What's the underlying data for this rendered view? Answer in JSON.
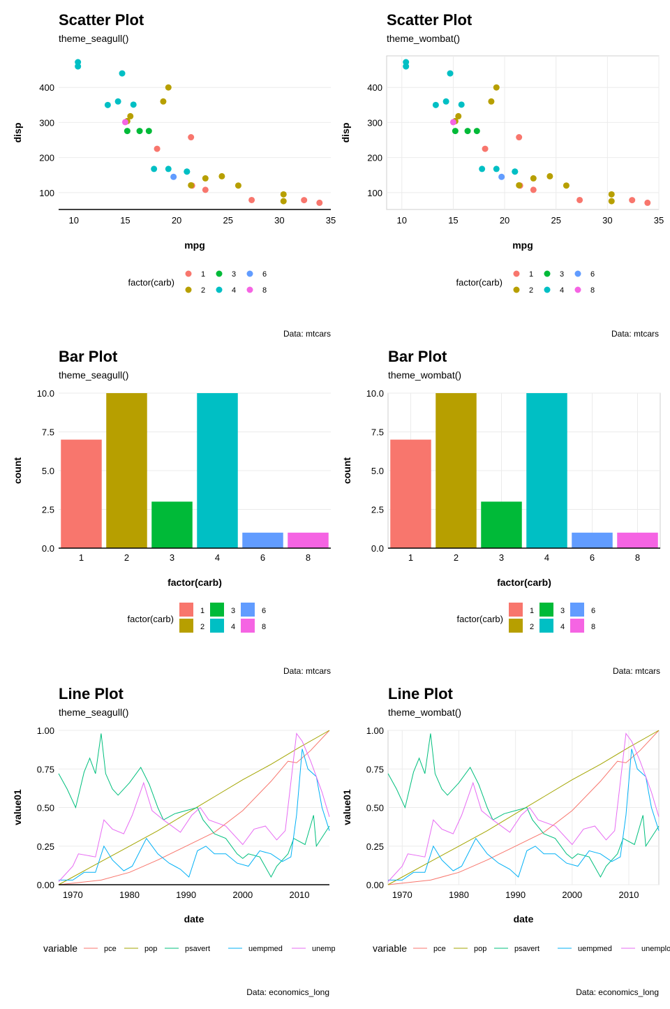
{
  "colors": {
    "series": {
      "1": "#F8766D",
      "2": "#B79F00",
      "3": "#00BA38",
      "4": "#00BFC4",
      "6": "#619CFF",
      "8": "#F564E3"
    },
    "lines": {
      "pce": "#F8766D",
      "pop": "#A3A500",
      "psavert": "#00BF7D",
      "uempmed": "#00B0F6",
      "unemploy": "#E76BF3"
    }
  },
  "panels": {
    "scatter_seagull": {
      "title": "Scatter Plot",
      "subtitle": "theme_seagull()",
      "caption": "Data: mtcars"
    },
    "scatter_wombat": {
      "title": "Scatter Plot",
      "subtitle": "theme_wombat()",
      "caption": "Data: mtcars"
    },
    "bar_seagull": {
      "title": "Bar Plot",
      "subtitle": "theme_seagull()",
      "caption": "Data: mtcars"
    },
    "bar_wombat": {
      "title": "Bar Plot",
      "subtitle": "theme_wombat()",
      "caption": "Data: mtcars"
    },
    "line_seagull": {
      "title": "Line Plot",
      "subtitle": "theme_seagull()",
      "caption": "Data: economics_long"
    },
    "line_wombat": {
      "title": "Line Plot",
      "subtitle": "theme_wombat()",
      "caption": "Data: economics_long"
    }
  },
  "chart_data": [
    {
      "id": "scatter",
      "type": "scatter",
      "xlabel": "mpg",
      "ylabel": "disp",
      "xlim": [
        9.2,
        35.0
      ],
      "ylim": [
        52,
        490
      ],
      "xticks": [
        "10",
        "15",
        "20",
        "25",
        "30",
        "35"
      ],
      "yticks": [
        "100",
        "200",
        "300",
        "400"
      ],
      "legend_title": "factor(carb)",
      "legend_labels": [
        "1",
        "2",
        "3",
        "4",
        "6",
        "8"
      ],
      "points": [
        [
          21,
          160,
          4
        ],
        [
          21,
          160,
          4
        ],
        [
          22.8,
          108,
          1
        ],
        [
          21.4,
          258,
          1
        ],
        [
          18.7,
          360,
          2
        ],
        [
          18.1,
          225,
          1
        ],
        [
          14.3,
          360,
          4
        ],
        [
          24.4,
          146.7,
          2
        ],
        [
          22.8,
          140.8,
          2
        ],
        [
          19.2,
          167.6,
          4
        ],
        [
          17.8,
          167.6,
          4
        ],
        [
          16.4,
          275.8,
          3
        ],
        [
          17.3,
          275.8,
          3
        ],
        [
          15.2,
          275.8,
          3
        ],
        [
          10.4,
          472,
          4
        ],
        [
          10.4,
          460,
          4
        ],
        [
          14.7,
          440,
          4
        ],
        [
          32.4,
          78.7,
          1
        ],
        [
          30.4,
          75.7,
          2
        ],
        [
          33.9,
          71.1,
          1
        ],
        [
          21.5,
          120.1,
          1
        ],
        [
          15.5,
          318,
          2
        ],
        [
          15.2,
          304,
          2
        ],
        [
          13.3,
          350,
          4
        ],
        [
          19.2,
          400,
          2
        ],
        [
          27.3,
          79,
          1
        ],
        [
          26,
          120.3,
          2
        ],
        [
          30.4,
          95.1,
          2
        ],
        [
          15.8,
          351,
          4
        ],
        [
          19.7,
          145,
          6
        ],
        [
          15,
          301,
          8
        ],
        [
          21.4,
          121,
          2
        ]
      ]
    },
    {
      "id": "bar",
      "type": "bar",
      "xlabel": "factor(carb)",
      "ylabel": "count",
      "ylim": [
        0,
        10
      ],
      "categories": [
        "1",
        "2",
        "3",
        "4",
        "6",
        "8"
      ],
      "values": [
        7,
        10,
        3,
        10,
        1,
        1
      ],
      "yticks": [
        "0.0",
        "2.5",
        "5.0",
        "7.5",
        "10.0"
      ],
      "legend_title": "factor(carb)",
      "legend_labels": [
        "1",
        "2",
        "3",
        "4",
        "6",
        "8"
      ]
    },
    {
      "id": "line",
      "type": "line",
      "xlabel": "date",
      "ylabel": "value01",
      "xlim": [
        1967.5,
        2015.3
      ],
      "ylim": [
        0,
        1
      ],
      "xticks": [
        "1970",
        "1980",
        "1990",
        "2000",
        "2010"
      ],
      "yticks": [
        "0.00",
        "0.25",
        "0.50",
        "0.75",
        "1.00"
      ],
      "legend_title": "variable",
      "series": [
        {
          "name": "pce",
          "points": [
            [
              1967.5,
              0
            ],
            [
              1975,
              0.03
            ],
            [
              1980,
              0.08
            ],
            [
              1985,
              0.16
            ],
            [
              1990,
              0.25
            ],
            [
              1995,
              0.34
            ],
            [
              2000,
              0.48
            ],
            [
              2005,
              0.67
            ],
            [
              2008,
              0.8
            ],
            [
              2009.5,
              0.79
            ],
            [
              2012,
              0.87
            ],
            [
              2015.3,
              1.0
            ]
          ]
        },
        {
          "name": "pop",
          "points": [
            [
              1967.5,
              0
            ],
            [
              1970,
              0.05
            ],
            [
              1975,
              0.15
            ],
            [
              1980,
              0.25
            ],
            [
              1985,
              0.35
            ],
            [
              1990,
              0.46
            ],
            [
              1995,
              0.57
            ],
            [
              2000,
              0.68
            ],
            [
              2005,
              0.78
            ],
            [
              2010,
              0.89
            ],
            [
              2015.3,
              1.0
            ]
          ]
        },
        {
          "name": "psavert",
          "points": [
            [
              1967.5,
              0.72
            ],
            [
              1969,
              0.62
            ],
            [
              1970.5,
              0.5
            ],
            [
              1972,
              0.73
            ],
            [
              1973,
              0.82
            ],
            [
              1974,
              0.72
            ],
            [
              1975,
              0.98
            ],
            [
              1975.8,
              0.72
            ],
            [
              1977,
              0.62
            ],
            [
              1978,
              0.58
            ],
            [
              1980,
              0.66
            ],
            [
              1982,
              0.76
            ],
            [
              1983.5,
              0.65
            ],
            [
              1985,
              0.5
            ],
            [
              1986,
              0.42
            ],
            [
              1988,
              0.46
            ],
            [
              1990,
              0.48
            ],
            [
              1992,
              0.5
            ],
            [
              1993,
              0.42
            ],
            [
              1995,
              0.33
            ],
            [
              1997,
              0.3
            ],
            [
              1999,
              0.2
            ],
            [
              2000,
              0.17
            ],
            [
              2001,
              0.2
            ],
            [
              2003,
              0.18
            ],
            [
              2005,
              0.05
            ],
            [
              2006,
              0.12
            ],
            [
              2008,
              0.2
            ],
            [
              2009,
              0.3
            ],
            [
              2011,
              0.26
            ],
            [
              2012.5,
              0.45
            ],
            [
              2013,
              0.25
            ],
            [
              2015.3,
              0.38
            ]
          ]
        },
        {
          "name": "uempmed",
          "points": [
            [
              1967.5,
              0.03
            ],
            [
              1970,
              0.03
            ],
            [
              1972,
              0.08
            ],
            [
              1974,
              0.08
            ],
            [
              1975.5,
              0.25
            ],
            [
              1977,
              0.16
            ],
            [
              1979,
              0.09
            ],
            [
              1980.5,
              0.12
            ],
            [
              1983,
              0.3
            ],
            [
              1985,
              0.2
            ],
            [
              1987,
              0.14
            ],
            [
              1989,
              0.1
            ],
            [
              1990.5,
              0.05
            ],
            [
              1992,
              0.22
            ],
            [
              1993.5,
              0.25
            ],
            [
              1995,
              0.2
            ],
            [
              1997,
              0.2
            ],
            [
              1999,
              0.14
            ],
            [
              2001,
              0.12
            ],
            [
              2003,
              0.22
            ],
            [
              2005,
              0.2
            ],
            [
              2007,
              0.15
            ],
            [
              2008.5,
              0.18
            ],
            [
              2009.5,
              0.45
            ],
            [
              2010.5,
              0.88
            ],
            [
              2011.5,
              0.75
            ],
            [
              2013,
              0.7
            ],
            [
              2014,
              0.5
            ],
            [
              2015.3,
              0.35
            ]
          ]
        },
        {
          "name": "unemploy",
          "points": [
            [
              1967.5,
              0.02
            ],
            [
              1970,
              0.12
            ],
            [
              1971,
              0.2
            ],
            [
              1974,
              0.18
            ],
            [
              1975.5,
              0.42
            ],
            [
              1977,
              0.36
            ],
            [
              1979,
              0.33
            ],
            [
              1980.5,
              0.45
            ],
            [
              1982.5,
              0.66
            ],
            [
              1984,
              0.48
            ],
            [
              1986,
              0.42
            ],
            [
              1989,
              0.34
            ],
            [
              1991,
              0.45
            ],
            [
              1992.5,
              0.5
            ],
            [
              1994,
              0.42
            ],
            [
              1997,
              0.38
            ],
            [
              2000,
              0.26
            ],
            [
              2002,
              0.36
            ],
            [
              2004,
              0.38
            ],
            [
              2006,
              0.29
            ],
            [
              2007.5,
              0.35
            ],
            [
              2009.5,
              0.98
            ],
            [
              2010.5,
              0.93
            ],
            [
              2012,
              0.8
            ],
            [
              2014,
              0.6
            ],
            [
              2015.3,
              0.44
            ]
          ]
        }
      ]
    }
  ]
}
